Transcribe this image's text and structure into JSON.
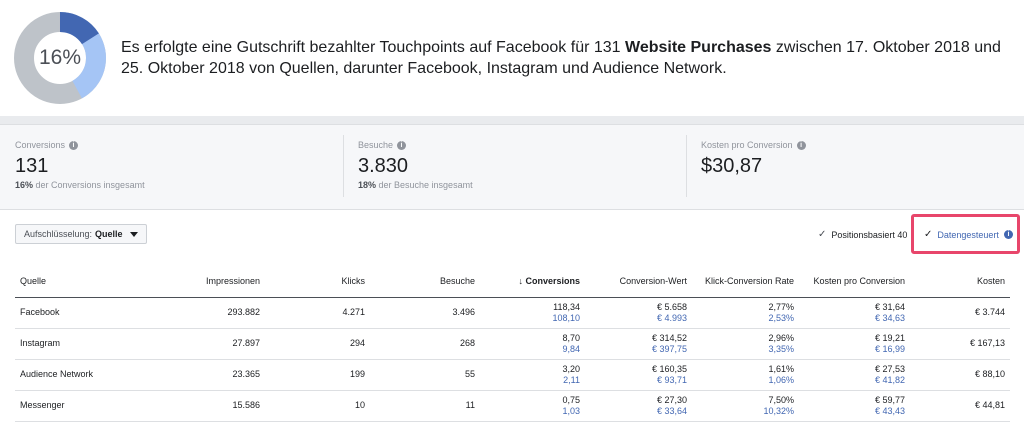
{
  "summary": {
    "donut_percent": "16%",
    "donut_fraction": 0.16,
    "text_before": "Es erfolgte eine Gutschrift bezahlter Touchpoints auf Facebook für 131 ",
    "text_bold": "Website Purchases",
    "text_after": " zwischen 17. Oktober 2018 und 25. Oktober 2018 von Quellen, darunter Facebook, Instagram und Audience Network.",
    "donut_colors": [
      "#4267b2",
      "#a5c5f5",
      "#bec3c9"
    ]
  },
  "metrics": [
    {
      "label": "Conversions",
      "value": "131",
      "sub_bold": "16%",
      "sub_text": " der Conversions insgesamt"
    },
    {
      "label": "Besuche",
      "value": "3.830",
      "sub_bold": "18%",
      "sub_text": " der Besuche insgesamt"
    },
    {
      "label": "Kosten pro Conversion",
      "value": "$30,87",
      "sub_bold": "",
      "sub_text": ""
    }
  ],
  "controls": {
    "breakdown_label": "Aufschlüsselung:",
    "breakdown_value": "Quelle",
    "option1": "Positionsbasiert 40",
    "option2": "Datengesteuert"
  },
  "table": {
    "headers": [
      "Quelle",
      "Impressionen",
      "Klicks",
      "Besuche",
      "↓ Conversions",
      "Conversion-Wert",
      "Klick-Conversion Rate",
      "Kosten pro Conversion",
      "Kosten"
    ],
    "rows": [
      {
        "quelle": "Facebook",
        "impressionen": "293.882",
        "klicks": "4.271",
        "besuche": "3.496",
        "conv": "118,34",
        "conv_sub": "108,10",
        "wert": "€ 5.658",
        "wert_sub": "€ 4.993",
        "rate": "2,77%",
        "rate_sub": "2,53%",
        "kpc": "€ 31,64",
        "kpc_sub": "€ 34,63",
        "kosten": "€ 3.744"
      },
      {
        "quelle": "Instagram",
        "impressionen": "27.897",
        "klicks": "294",
        "besuche": "268",
        "conv": "8,70",
        "conv_sub": "9,84",
        "wert": "€ 314,52",
        "wert_sub": "€ 397,75",
        "rate": "2,96%",
        "rate_sub": "3,35%",
        "kpc": "€ 19,21",
        "kpc_sub": "€ 16,99",
        "kosten": "€ 167,13"
      },
      {
        "quelle": "Audience Network",
        "impressionen": "23.365",
        "klicks": "199",
        "besuche": "55",
        "conv": "3,20",
        "conv_sub": "2,11",
        "wert": "€ 160,35",
        "wert_sub": "€ 93,71",
        "rate": "1,61%",
        "rate_sub": "1,06%",
        "kpc": "€ 27,53",
        "kpc_sub": "€ 41,82",
        "kosten": "€ 88,10"
      },
      {
        "quelle": "Messenger",
        "impressionen": "15.586",
        "klicks": "10",
        "besuche": "11",
        "conv": "0,75",
        "conv_sub": "1,03",
        "wert": "€ 27,30",
        "wert_sub": "€ 33,64",
        "rate": "7,50%",
        "rate_sub": "10,32%",
        "kpc": "€ 59,77",
        "kpc_sub": "€ 43,43",
        "kosten": "€ 44,81"
      }
    ]
  }
}
